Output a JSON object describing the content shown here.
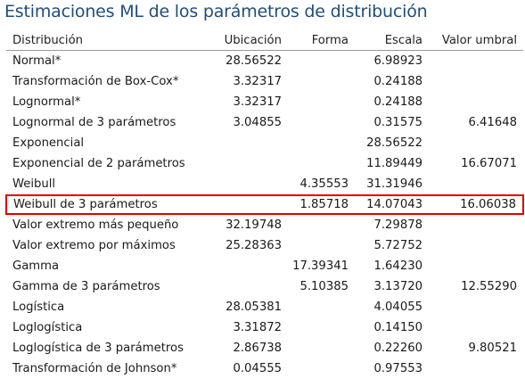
{
  "title": "Estimaciones ML de los parámetros de distribución",
  "columns": [
    "Distribución",
    "Ubicación",
    "Forma",
    "Escala",
    "Valor umbral"
  ],
  "rows": [
    [
      "Normal*",
      "28.56522",
      "",
      "6.98923",
      ""
    ],
    [
      "Transformación de Box-Cox*",
      "3.32317",
      "",
      "0.24188",
      ""
    ],
    [
      "Lognormal*",
      "3.32317",
      "",
      "0.24188",
      ""
    ],
    [
      "Lognormal de 3 parámetros",
      "3.04855",
      "",
      "0.31575",
      "6.41648"
    ],
    [
      "Exponencial",
      "",
      "",
      "28.56522",
      ""
    ],
    [
      "Exponencial de 2 parámetros",
      "",
      "",
      "11.89449",
      "16.67071"
    ],
    [
      "Weibull",
      "",
      "4.35553",
      "31.31946",
      ""
    ],
    [
      "Weibull de 3 parámetros",
      "",
      "1.85718",
      "14.07043",
      "16.06038"
    ],
    [
      "Valor extremo más pequeño",
      "32.19748",
      "",
      "7.29878",
      ""
    ],
    [
      "Valor extremo por máximos",
      "25.28363",
      "",
      "5.72752",
      ""
    ],
    [
      "Gamma",
      "",
      "17.39341",
      "1.64230",
      ""
    ],
    [
      "Gamma de 3 parámetros",
      "",
      "5.10385",
      "3.13720",
      "12.55290"
    ],
    [
      "Logística",
      "28.05381",
      "",
      "4.04055",
      ""
    ],
    [
      "Loglogística",
      "3.31872",
      "",
      "0.14150",
      ""
    ],
    [
      "Loglogística de 3 parámetros",
      "2.86738",
      "",
      "0.22260",
      "9.80521"
    ],
    [
      "Transformación de Johnson*",
      "0.04555",
      "",
      "0.97553",
      ""
    ]
  ],
  "highlighted_row": "Weibull de 3 parámetros",
  "colors": {
    "title": "#1f4e79",
    "highlight_border": "#e00000",
    "header_rule": "#9a9a9a"
  }
}
